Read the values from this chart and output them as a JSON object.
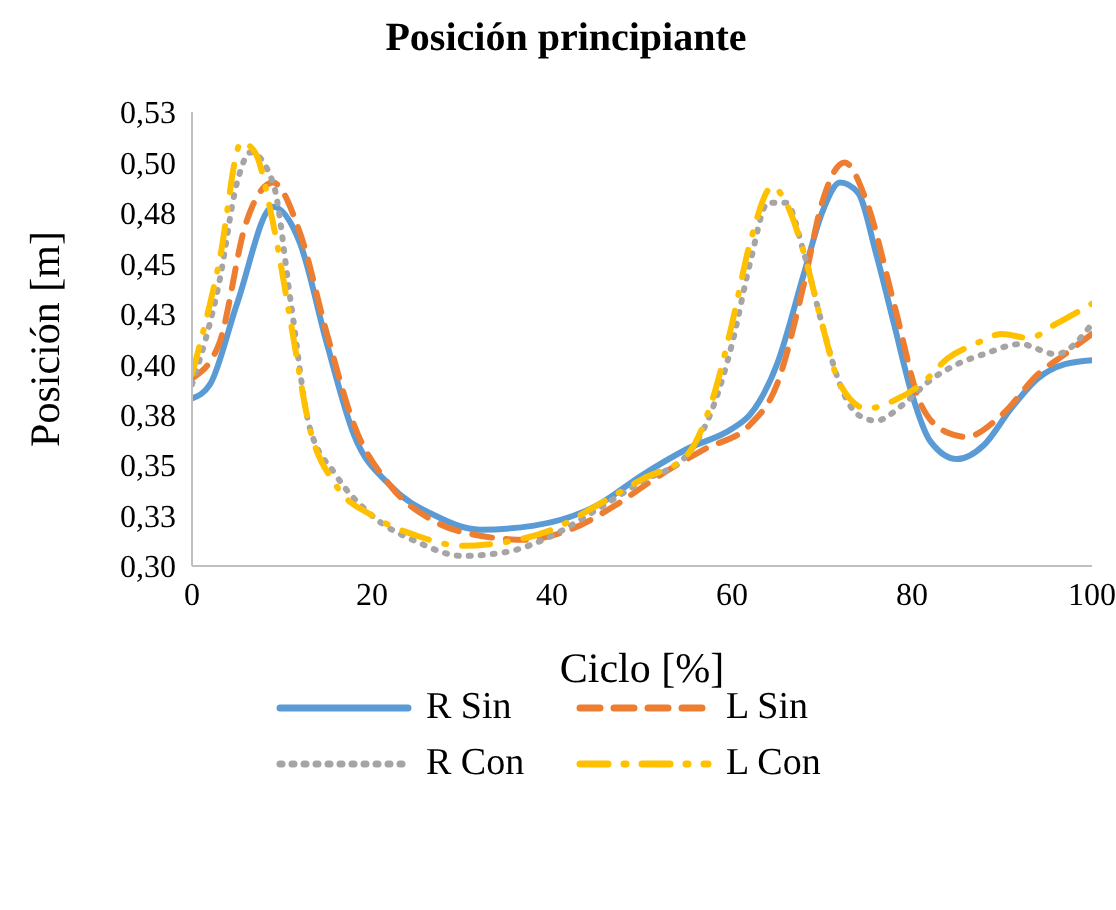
{
  "chart_data": {
    "type": "line",
    "title": "Posición principiante",
    "xlabel": "Ciclo [%]",
    "ylabel": "Posición [m]",
    "xlim": [
      0,
      100
    ],
    "xticks": [
      0,
      20,
      40,
      60,
      80,
      100
    ],
    "ylim": [
      0.3,
      0.525
    ],
    "yticks": [
      {
        "value": 0.3,
        "label": "0,30"
      },
      {
        "value": 0.325,
        "label": "0,33"
      },
      {
        "value": 0.35,
        "label": "0,35"
      },
      {
        "value": 0.375,
        "label": "0,38"
      },
      {
        "value": 0.4,
        "label": "0,40"
      },
      {
        "value": 0.425,
        "label": "0,43"
      },
      {
        "value": 0.45,
        "label": "0,45"
      },
      {
        "value": 0.475,
        "label": "0,48"
      },
      {
        "value": 0.5,
        "label": "0,50"
      },
      {
        "value": 0.525,
        "label": "0,53"
      }
    ],
    "legend": "bottom",
    "marker": "none",
    "series": [
      {
        "name": "R Sin",
        "color": "#5b9bd5",
        "line_style": "solid",
        "x": [
          0,
          2,
          5,
          9,
          12,
          15,
          18,
          22,
          27,
          32,
          38,
          45,
          50,
          55,
          60,
          62,
          65,
          68,
          70,
          72,
          74,
          76,
          78,
          80,
          82,
          85,
          88,
          91,
          94,
          97,
          100
        ],
        "values": [
          0.383,
          0.39,
          0.43,
          0.478,
          0.46,
          0.41,
          0.365,
          0.34,
          0.325,
          0.318,
          0.32,
          0.33,
          0.345,
          0.358,
          0.368,
          0.375,
          0.4,
          0.445,
          0.475,
          0.49,
          0.485,
          0.455,
          0.42,
          0.385,
          0.362,
          0.353,
          0.36,
          0.378,
          0.393,
          0.4,
          0.402
        ]
      },
      {
        "name": "L Sin",
        "color": "#ed7d31",
        "line_style": "dashed",
        "x": [
          0,
          3,
          6,
          9,
          12,
          15,
          18,
          22,
          27,
          32,
          37,
          42,
          47,
          52,
          57,
          62,
          65,
          68,
          70,
          72.5,
          75,
          78,
          81,
          84,
          86,
          90,
          94,
          97,
          100
        ],
        "values": [
          0.393,
          0.41,
          0.47,
          0.49,
          0.465,
          0.415,
          0.37,
          0.34,
          0.322,
          0.315,
          0.313,
          0.318,
          0.33,
          0.345,
          0.358,
          0.37,
          0.39,
          0.44,
          0.48,
          0.5,
          0.48,
          0.43,
          0.38,
          0.366,
          0.364,
          0.375,
          0.395,
          0.405,
          0.415
        ]
      },
      {
        "name": "R Con",
        "color": "#a5a5a5",
        "line_style": "dotted",
        "x": [
          0,
          3,
          5,
          6.5,
          9,
          11,
          13,
          16,
          20,
          25,
          30,
          35,
          40,
          45,
          50,
          55,
          58,
          60,
          62,
          64,
          66,
          68,
          70,
          72,
          74,
          76,
          79,
          82,
          85,
          88,
          92,
          96,
          100
        ],
        "values": [
          0.39,
          0.44,
          0.49,
          0.505,
          0.49,
          0.43,
          0.37,
          0.345,
          0.325,
          0.312,
          0.305,
          0.307,
          0.315,
          0.328,
          0.342,
          0.355,
          0.38,
          0.41,
          0.45,
          0.48,
          0.48,
          0.455,
          0.42,
          0.39,
          0.375,
          0.372,
          0.38,
          0.392,
          0.4,
          0.405,
          0.41,
          0.405,
          0.42
        ]
      },
      {
        "name": "L Con",
        "color": "#ffc000",
        "line_style": "dashdot",
        "x": [
          0,
          3,
          5.5,
          7,
          9,
          11,
          13,
          16,
          20,
          25,
          30,
          35,
          40,
          45,
          50,
          55,
          58,
          60,
          62,
          64.5,
          66,
          68,
          70,
          72,
          75,
          78,
          81,
          84,
          87,
          90,
          93,
          96,
          100
        ],
        "values": [
          0.395,
          0.45,
          0.51,
          0.505,
          0.47,
          0.42,
          0.37,
          0.34,
          0.325,
          0.315,
          0.31,
          0.312,
          0.318,
          0.33,
          0.343,
          0.355,
          0.385,
          0.42,
          0.46,
          0.488,
          0.48,
          0.455,
          0.42,
          0.39,
          0.378,
          0.382,
          0.39,
          0.403,
          0.41,
          0.415,
          0.413,
          0.42,
          0.43
        ]
      }
    ]
  }
}
